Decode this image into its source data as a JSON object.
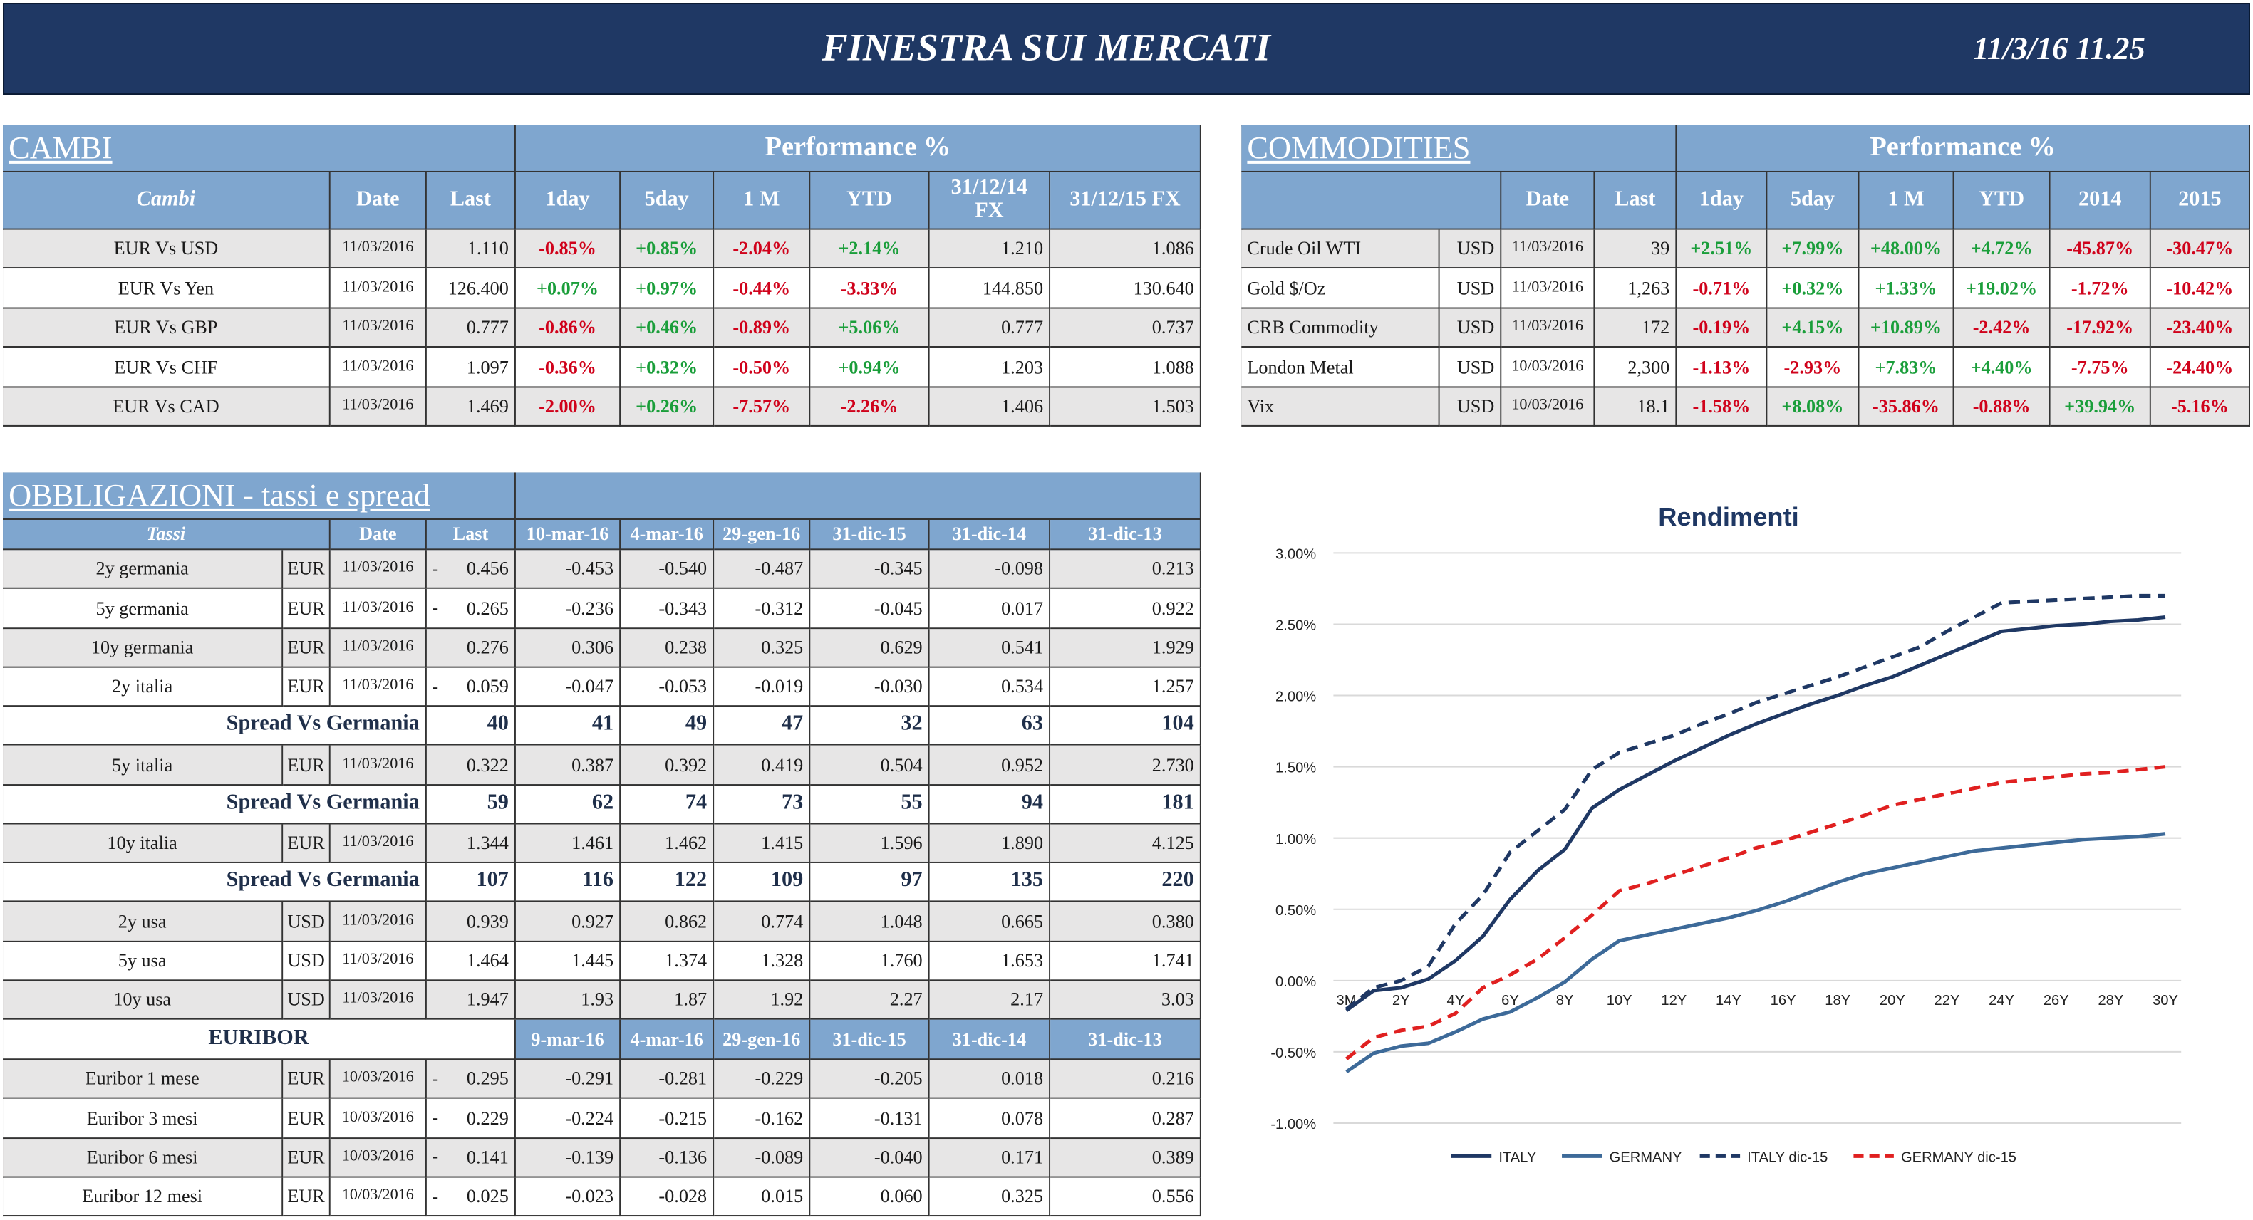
{
  "header": {
    "title": "FINESTRA SUI MERCATI",
    "datetime": "11/3/16 11.25"
  },
  "cambi": {
    "title": "CAMBI",
    "performance_label": "Performance  %",
    "columns": [
      "Cambi",
      "Date",
      "Last",
      "1day",
      "5day",
      "1 M",
      "YTD",
      "31/12/14 FX",
      "31/12/15  FX"
    ],
    "rows": [
      [
        "EUR Vs USD",
        "11/03/2016",
        "1.110",
        "-0.85%",
        "+0.85%",
        "-2.04%",
        "+2.14%",
        "1.210",
        "1.086"
      ],
      [
        "EUR Vs Yen",
        "11/03/2016",
        "126.400",
        "+0.07%",
        "+0.97%",
        "-0.44%",
        "-3.33%",
        "144.850",
        "130.640"
      ],
      [
        "EUR Vs GBP",
        "11/03/2016",
        "0.777",
        "-0.86%",
        "+0.46%",
        "-0.89%",
        "+5.06%",
        "0.777",
        "0.737"
      ],
      [
        "EUR Vs CHF",
        "11/03/2016",
        "1.097",
        "-0.36%",
        "+0.32%",
        "-0.50%",
        "+0.94%",
        "1.203",
        "1.088"
      ],
      [
        "EUR Vs CAD",
        "11/03/2016",
        "1.469",
        "-2.00%",
        "+0.26%",
        "-7.57%",
        "-2.26%",
        "1.406",
        "1.503"
      ]
    ]
  },
  "commodities": {
    "title": "COMMODITIES",
    "performance_label": "Performance  %",
    "columns": [
      "Date",
      "Last",
      "1day",
      "5day",
      "1 M",
      "YTD",
      "2014",
      "2015"
    ],
    "rows": [
      [
        "Crude Oil WTI",
        "USD",
        "11/03/2016",
        "39",
        "+2.51%",
        "+7.99%",
        "+48.00%",
        "+4.72%",
        "-45.87%",
        "-30.47%"
      ],
      [
        "Gold $/Oz",
        "USD",
        "11/03/2016",
        "1,263",
        "-0.71%",
        "+0.32%",
        "+1.33%",
        "+19.02%",
        "-1.72%",
        "-10.42%"
      ],
      [
        "CRB Commodity",
        "USD",
        "11/03/2016",
        "172",
        "-0.19%",
        "+4.15%",
        "+10.89%",
        "-2.42%",
        "-17.92%",
        "-23.40%"
      ],
      [
        "London Metal",
        "USD",
        "10/03/2016",
        "2,300",
        "-1.13%",
        "-2.93%",
        "+7.83%",
        "+4.40%",
        "-7.75%",
        "-24.40%"
      ],
      [
        "Vix",
        "USD",
        "10/03/2016",
        "18.1",
        "-1.58%",
        "+8.08%",
        "-35.86%",
        "-0.88%",
        "+39.94%",
        "-5.16%"
      ]
    ]
  },
  "obbligazioni": {
    "title": "OBBLIGAZIONI - tassi e spread",
    "columns": [
      "Tassi",
      "Date",
      "Last",
      "10-mar-16",
      "4-mar-16",
      "29-gen-16",
      "31-dic-15",
      "31-dic-14",
      "31-dic-13"
    ],
    "rows": [
      {
        "name": "2y germania",
        "currency": "EUR",
        "date": "11/03/2016",
        "marker": "-",
        "last": "0.456",
        "history": [
          "-0.453",
          "-0.540",
          "-0.487",
          "-0.345",
          "-0.098",
          "0.213"
        ]
      },
      {
        "name": "5y germania",
        "currency": "EUR",
        "date": "11/03/2016",
        "marker": "-",
        "last": "0.265",
        "history": [
          "-0.236",
          "-0.343",
          "-0.312",
          "-0.045",
          "0.017",
          "0.922"
        ]
      },
      {
        "name": "10y germania",
        "currency": "EUR",
        "date": "11/03/2016",
        "last": "0.276",
        "history": [
          "0.306",
          "0.238",
          "0.325",
          "0.629",
          "0.541",
          "1.929"
        ]
      },
      {
        "name": "2y italia",
        "currency": "EUR",
        "date": "11/03/2016",
        "marker": "-",
        "last": "0.059",
        "history": [
          "-0.047",
          "-0.053",
          "-0.019",
          "-0.030",
          "0.534",
          "1.257"
        ]
      },
      {
        "name": "Spread Vs Germania",
        "last": "40",
        "history": [
          "41",
          "49",
          "47",
          "32",
          "63",
          "104"
        ]
      },
      {
        "name": "5y italia",
        "currency": "EUR",
        "date": "11/03/2016",
        "last": "0.322",
        "history": [
          "0.387",
          "0.392",
          "0.419",
          "0.504",
          "0.952",
          "2.730"
        ]
      },
      {
        "name": "Spread Vs Germania",
        "last": "59",
        "history": [
          "62",
          "74",
          "73",
          "55",
          "94",
          "181"
        ]
      },
      {
        "name": "10y italia",
        "currency": "EUR",
        "date": "11/03/2016",
        "last": "1.344",
        "history": [
          "1.461",
          "1.462",
          "1.415",
          "1.596",
          "1.890",
          "4.125"
        ]
      },
      {
        "name": "Spread Vs Germania",
        "last": "107",
        "history": [
          "116",
          "122",
          "109",
          "97",
          "135",
          "220"
        ]
      },
      {
        "name": "2y usa",
        "currency": "USD",
        "date": "11/03/2016",
        "last": "0.939",
        "history": [
          "0.927",
          "0.862",
          "0.774",
          "1.048",
          "0.665",
          "0.380"
        ]
      },
      {
        "name": "5y usa",
        "currency": "USD",
        "date": "11/03/2016",
        "last": "1.464",
        "history": [
          "1.445",
          "1.374",
          "1.328",
          "1.760",
          "1.653",
          "1.741"
        ]
      },
      {
        "name": "10y usa",
        "currency": "USD",
        "date": "11/03/2016",
        "last": "1.947",
        "history": [
          "1.93",
          "1.87",
          "1.92",
          "2.27",
          "2.17",
          "3.03"
        ]
      }
    ]
  },
  "euribor": {
    "title": "EURIBOR",
    "columns": [
      "9-mar-16",
      "4-mar-16",
      "29-gen-16",
      "31-dic-15",
      "31-dic-14",
      "31-dic-13"
    ],
    "rows": [
      {
        "name": "Euribor 1 mese",
        "currency": "EUR",
        "date": "10/03/2016",
        "marker": "-",
        "last": "0.295",
        "history": [
          "-0.291",
          "-0.281",
          "-0.229",
          "-0.205",
          "0.018",
          "0.216"
        ]
      },
      {
        "name": "Euribor 3 mesi",
        "currency": "EUR",
        "date": "10/03/2016",
        "marker": "-",
        "last": "0.229",
        "history": [
          "-0.224",
          "-0.215",
          "-0.162",
          "-0.131",
          "0.078",
          "0.287"
        ]
      },
      {
        "name": "Euribor 6 mesi",
        "currency": "EUR",
        "date": "10/03/2016",
        "marker": "-",
        "last": "0.141",
        "history": [
          "-0.139",
          "-0.136",
          "-0.089",
          "-0.040",
          "0.171",
          "0.389"
        ]
      },
      {
        "name": "Euribor 12 mesi",
        "currency": "EUR",
        "date": "10/03/2016",
        "marker": "-",
        "last": "0.025",
        "history": [
          "-0.023",
          "-0.028",
          "0.015",
          "0.060",
          "0.325",
          "0.556"
        ]
      }
    ]
  },
  "chart_data": {
    "type": "line",
    "title": "Rendimenti",
    "categories": [
      "3M",
      null,
      "2Y",
      null,
      "4Y",
      null,
      "6Y",
      null,
      "8Y",
      null,
      "10Y",
      null,
      "12Y",
      null,
      "14Y",
      null,
      "16Y",
      null,
      "18Y",
      null,
      "20Y",
      null,
      "22Y",
      null,
      "24Y",
      null,
      "26Y",
      null,
      "28Y",
      null,
      "30Y"
    ],
    "ylim": [
      -1,
      3
    ],
    "yticks": [
      {
        "value": -1,
        "label": "-1.00%"
      },
      {
        "value": -0.5,
        "label": "-0.50%"
      },
      {
        "value": 0,
        "label": "0.00%"
      },
      {
        "value": 0.5,
        "label": "0.50%"
      },
      {
        "value": 1,
        "label": "1.00%"
      },
      {
        "value": 1.5,
        "label": "1.50%"
      },
      {
        "value": 2,
        "label": "2.00%"
      },
      {
        "value": 2.5,
        "label": "2.50%"
      },
      {
        "value": 3,
        "label": "3.00%"
      }
    ],
    "grid": true,
    "legend": "bottom",
    "series": [
      {
        "name": "ITALY",
        "color": "#1f3864",
        "dash": false,
        "values": [
          -0.21,
          -0.07,
          -0.05,
          0.01,
          0.14,
          0.31,
          0.57,
          0.77,
          0.92,
          1.21,
          1.34,
          1.44,
          1.54,
          1.63,
          1.72,
          1.8,
          1.87,
          1.94,
          2.0,
          2.07,
          2.13,
          2.21,
          2.29,
          2.37,
          2.45,
          2.47,
          2.49,
          2.5,
          2.52,
          2.53,
          2.55
        ]
      },
      {
        "name": "GERMANY",
        "color": "#3d6a99",
        "dash": false,
        "values": [
          -0.64,
          -0.51,
          -0.46,
          -0.44,
          -0.36,
          -0.27,
          -0.22,
          -0.12,
          -0.01,
          0.15,
          0.28,
          0.32,
          0.36,
          0.4,
          0.44,
          0.49,
          0.55,
          0.62,
          0.69,
          0.75,
          0.79,
          0.83,
          0.87,
          0.91,
          0.93,
          0.95,
          0.97,
          0.99,
          1.0,
          1.01,
          1.03
        ]
      },
      {
        "name": "ITALY dic-15",
        "color": "#1f3864",
        "dash": true,
        "values": [
          -0.2,
          -0.05,
          0.0,
          0.1,
          0.4,
          0.6,
          0.9,
          1.05,
          1.2,
          1.48,
          1.6,
          1.66,
          1.72,
          1.8,
          1.87,
          1.95,
          2.01,
          2.07,
          2.13,
          2.2,
          2.27,
          2.34,
          2.45,
          2.55,
          2.65,
          2.66,
          2.67,
          2.68,
          2.69,
          2.7,
          2.7
        ]
      },
      {
        "name": "GERMANY dic-15",
        "color": "#e02020",
        "dash": true,
        "values": [
          -0.55,
          -0.4,
          -0.35,
          -0.32,
          -0.23,
          -0.05,
          0.04,
          0.15,
          0.3,
          0.46,
          0.63,
          0.68,
          0.74,
          0.8,
          0.86,
          0.93,
          0.98,
          1.04,
          1.1,
          1.16,
          1.23,
          1.27,
          1.31,
          1.35,
          1.39,
          1.41,
          1.43,
          1.45,
          1.46,
          1.48,
          1.5
        ]
      }
    ]
  }
}
